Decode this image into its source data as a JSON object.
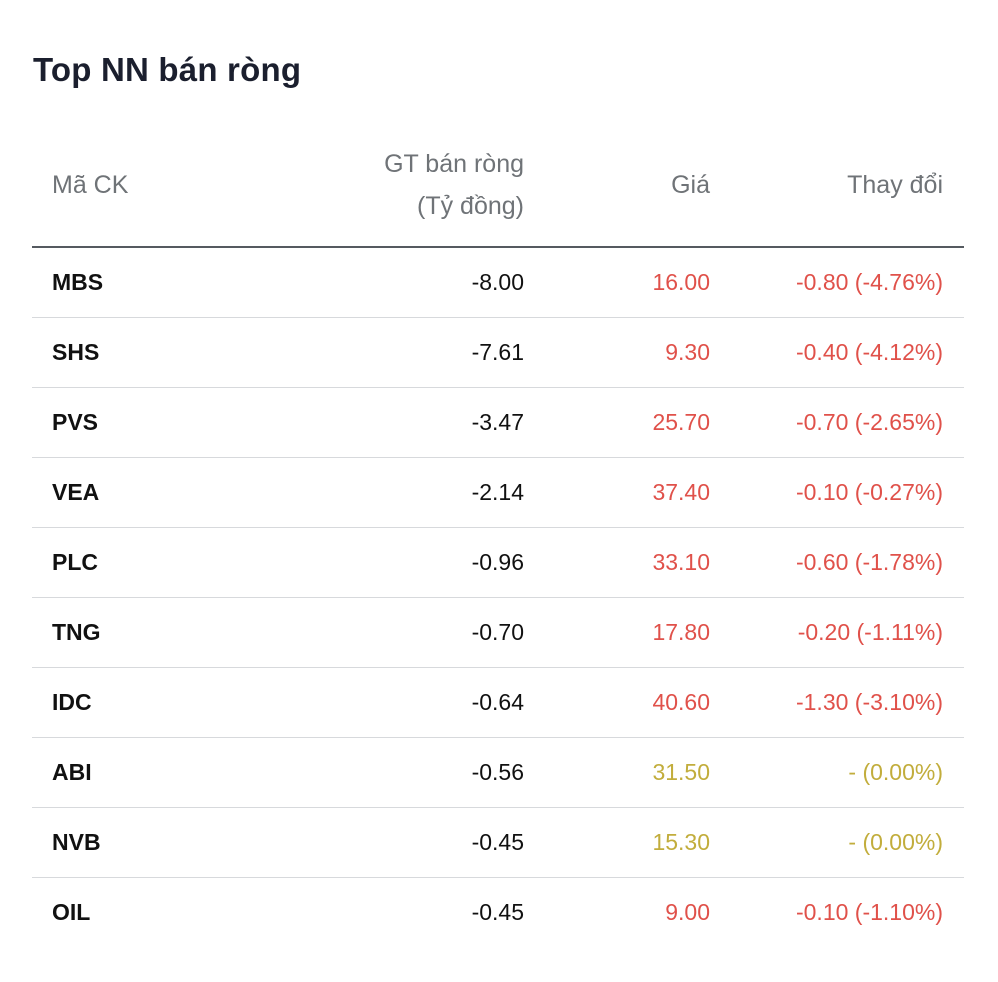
{
  "title": "Top NN bán ròng",
  "headers": {
    "code": "Mã CK",
    "value_line1": "GT bán ròng",
    "value_line2": "(Tỷ đồng)",
    "price": "Giá",
    "change": "Thay đổi"
  },
  "colors": {
    "down": "#e0514a",
    "flat": "#c2ad3c"
  },
  "rows": [
    {
      "code": "MBS",
      "value": "-8.00",
      "price": "16.00",
      "change": "-0.80 (-4.76%)",
      "status": "down"
    },
    {
      "code": "SHS",
      "value": "-7.61",
      "price": "9.30",
      "change": "-0.40 (-4.12%)",
      "status": "down"
    },
    {
      "code": "PVS",
      "value": "-3.47",
      "price": "25.70",
      "change": "-0.70 (-2.65%)",
      "status": "down"
    },
    {
      "code": "VEA",
      "value": "-2.14",
      "price": "37.40",
      "change": "-0.10 (-0.27%)",
      "status": "down"
    },
    {
      "code": "PLC",
      "value": "-0.96",
      "price": "33.10",
      "change": "-0.60 (-1.78%)",
      "status": "down"
    },
    {
      "code": "TNG",
      "value": "-0.70",
      "price": "17.80",
      "change": "-0.20 (-1.11%)",
      "status": "down"
    },
    {
      "code": "IDC",
      "value": "-0.64",
      "price": "40.60",
      "change": "-1.30 (-3.10%)",
      "status": "down"
    },
    {
      "code": "ABI",
      "value": "-0.56",
      "price": "31.50",
      "change": "- (0.00%)",
      "status": "flat"
    },
    {
      "code": "NVB",
      "value": "-0.45",
      "price": "15.30",
      "change": "- (0.00%)",
      "status": "flat"
    },
    {
      "code": "OIL",
      "value": "-0.45",
      "price": "9.00",
      "change": "-0.10 (-1.10%)",
      "status": "down"
    }
  ]
}
